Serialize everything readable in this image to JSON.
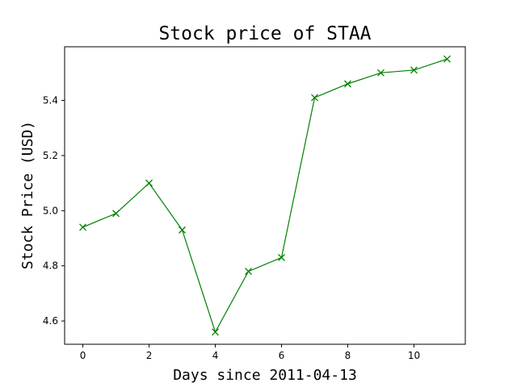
{
  "chart_data": {
    "type": "line",
    "title": "Stock price of STAA",
    "xlabel": "Days since 2011-04-13",
    "ylabel": "Stock Price (USD)",
    "x": [
      0,
      1,
      2,
      3,
      4,
      5,
      6,
      7,
      8,
      9,
      10,
      11
    ],
    "series": [
      {
        "values": [
          4.94,
          4.99,
          5.1,
          4.93,
          4.56,
          4.78,
          4.83,
          5.41,
          5.46,
          5.5,
          5.51,
          5.55
        ],
        "color": "#008000",
        "marker": "x"
      }
    ],
    "xlim": [
      -0.55,
      11.55
    ],
    "ylim": [
      4.5155,
      5.5945
    ],
    "xticks": [
      0,
      2,
      4,
      6,
      8,
      10
    ],
    "yticks": [
      4.6,
      4.8,
      5.0,
      5.2,
      5.4
    ],
    "grid": false
  }
}
